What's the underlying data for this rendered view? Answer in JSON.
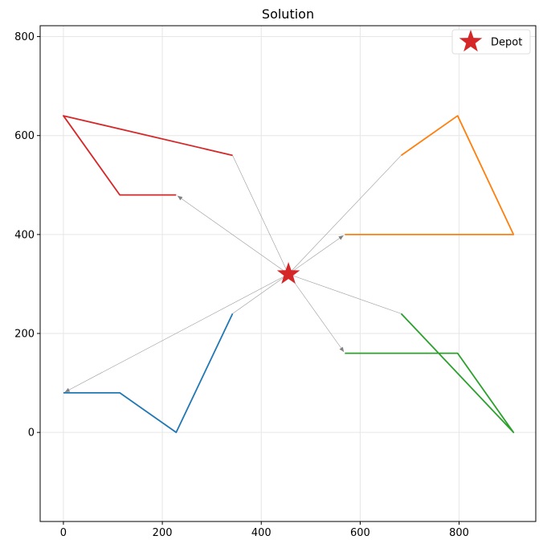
{
  "chart_data": {
    "type": "line",
    "title": "Solution",
    "xlabel": "",
    "ylabel": "",
    "xlim": [
      -47,
      955
    ],
    "ylim": [
      -180,
      822
    ],
    "xticks": [
      0,
      200,
      400,
      600,
      800
    ],
    "yticks": [
      0,
      200,
      400,
      600,
      800
    ],
    "grid": true,
    "legend_position": "top-right",
    "depot": {
      "x": 455,
      "y": 320,
      "label": "Depot",
      "color": "#d62728"
    },
    "routes": [
      {
        "color": "#1f77b4",
        "points": [
          [
            0,
            80
          ],
          [
            114,
            80
          ],
          [
            228,
            0
          ],
          [
            342,
            240
          ]
        ]
      },
      {
        "color": "#ff7f0e",
        "points": [
          [
            569,
            400
          ],
          [
            910,
            400
          ],
          [
            797,
            640
          ],
          [
            683,
            560
          ]
        ]
      },
      {
        "color": "#2ca02c",
        "points": [
          [
            569,
            160
          ],
          [
            797,
            160
          ],
          [
            910,
            0
          ],
          [
            683,
            240
          ]
        ]
      },
      {
        "color": "#d62728",
        "points": [
          [
            228,
            480
          ],
          [
            114,
            480
          ],
          [
            0,
            640
          ],
          [
            342,
            560
          ]
        ]
      }
    ],
    "connector_color": "#999999",
    "arrow_color": "#808080"
  }
}
